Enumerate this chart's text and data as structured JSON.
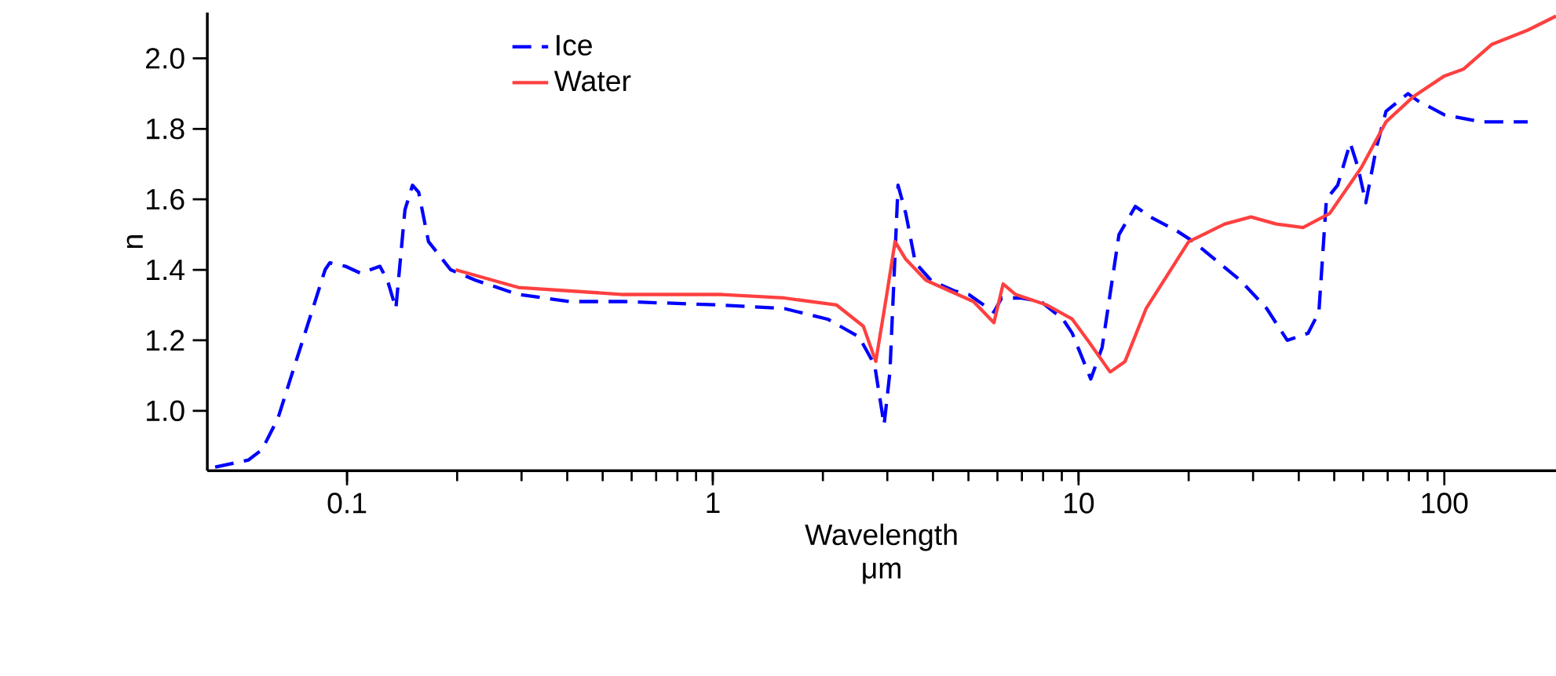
{
  "chart_data": {
    "type": "line",
    "xlabel": "Wavelength μm",
    "ylabel": "n",
    "log": "x",
    "legend": "top left",
    "xlim": [
      0.0415,
      202
    ],
    "ylim": [
      0.83,
      2.13
    ],
    "xticks": [
      0.1,
      1,
      10,
      100
    ],
    "yticks": [
      {
        "value": 1,
        "label": "1.0"
      },
      {
        "value": 1.2,
        "label": "1.2"
      },
      {
        "value": 1.4,
        "label": "1.4"
      },
      {
        "value": 1.6,
        "label": "1.6"
      },
      {
        "value": 1.8,
        "label": "1.8"
      },
      {
        "value": 2,
        "label": "2.0"
      }
    ],
    "series": [
      {
        "name": "Ice",
        "color": "#0000ff",
        "line_style": "dashed",
        "x": [
          0.0436,
          0.0537,
          0.0586,
          0.0648,
          0.07,
          0.0773,
          0.0871,
          0.0897,
          0.099,
          0.109,
          0.123,
          0.129,
          0.136,
          0.144,
          0.151,
          0.157,
          0.167,
          0.192,
          0.225,
          0.294,
          0.407,
          0.569,
          1.06,
          1.57,
          2.06,
          2.51,
          2.77,
          2.94,
          3.05,
          3.21,
          3.37,
          3.58,
          3.95,
          4.58,
          5.01,
          5.87,
          6.16,
          6.94,
          7.89,
          9.06,
          9.61,
          10.8,
          11.6,
          12.9,
          14.3,
          15.7,
          18.6,
          20.6,
          27.7,
          32.7,
          37.2,
          42.4,
          45.4,
          47.6,
          51.1,
          55.3,
          58.1,
          61.0,
          65.3,
          69.3,
          79.6,
          84.5,
          100,
          126,
          169
        ],
        "values": [
          0.84,
          0.86,
          0.89,
          0.98,
          1.09,
          1.23,
          1.4,
          1.42,
          1.41,
          1.39,
          1.41,
          1.37,
          1.29,
          1.57,
          1.64,
          1.62,
          1.48,
          1.4,
          1.37,
          1.33,
          1.31,
          1.31,
          1.3,
          1.29,
          1.26,
          1.21,
          1.13,
          0.96,
          1.11,
          1.64,
          1.56,
          1.42,
          1.37,
          1.34,
          1.33,
          1.28,
          1.32,
          1.32,
          1.31,
          1.26,
          1.22,
          1.09,
          1.18,
          1.5,
          1.58,
          1.55,
          1.51,
          1.48,
          1.37,
          1.29,
          1.2,
          1.22,
          1.28,
          1.6,
          1.64,
          1.76,
          1.69,
          1.59,
          1.75,
          1.85,
          1.9,
          1.88,
          1.84,
          1.82,
          1.82
        ]
      },
      {
        "name": "Water",
        "color": "#ff4040",
        "line_style": "solid",
        "x": [
          0.198,
          0.294,
          0.569,
          1.06,
          1.57,
          2.18,
          2.58,
          2.79,
          2.99,
          3.15,
          3.37,
          3.83,
          4.67,
          5.16,
          5.87,
          6.22,
          6.73,
          8.2,
          9.61,
          10.6,
          12.2,
          13.4,
          15.3,
          20.0,
          25.1,
          29.6,
          34.7,
          41.1,
          48.6,
          59.3,
          69.3,
          82.0,
          100,
          113,
          135,
          169,
          202
        ],
        "values": [
          1.4,
          1.35,
          1.33,
          1.33,
          1.32,
          1.3,
          1.24,
          1.14,
          1.33,
          1.48,
          1.43,
          1.37,
          1.33,
          1.31,
          1.25,
          1.36,
          1.33,
          1.3,
          1.26,
          1.2,
          1.11,
          1.14,
          1.29,
          1.48,
          1.53,
          1.55,
          1.53,
          1.52,
          1.56,
          1.69,
          1.82,
          1.89,
          1.95,
          1.97,
          2.04,
          2.08,
          2.12
        ]
      }
    ]
  }
}
